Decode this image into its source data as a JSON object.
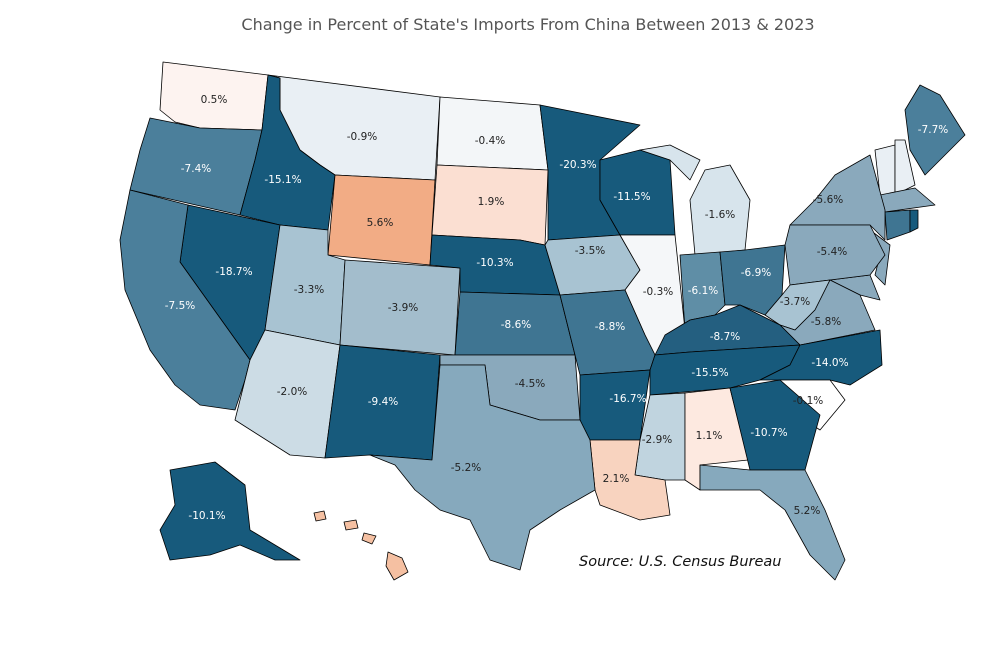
{
  "title": "Change in Percent of State's Imports From China Between 2013 & 2023",
  "source": "Source: U.S. Census Bureau",
  "map": {
    "values": [
      0.5,
      -0.9,
      -0.4,
      -20.3,
      -7.4,
      -15.1,
      5.6,
      1.9,
      -11.5,
      -1.6,
      -5.6,
      -7.7,
      -18.7,
      -7.5,
      -3.3,
      -3.9,
      -10.3,
      -3.5,
      -0.3,
      -6.1,
      -6.9,
      -5.4,
      -3.7,
      -5.8,
      -8.6,
      -8.8,
      -8.7,
      -15.5,
      -14.0,
      -0.1,
      -2.0,
      -9.4,
      -4.5,
      -16.7,
      -2.9,
      1.1,
      -10.7,
      2.1,
      -5.2,
      5.2,
      -10.1
    ],
    "value_labels": [
      "0.5%",
      "-0.9%",
      "-0.4%",
      "-20.3%",
      "-7.4%",
      "-15.1%",
      "5.6%",
      "1.9%",
      "-11.5%",
      "-1.6%",
      "-5.6%",
      "-7.7%",
      "-18.7%",
      "-7.5%",
      "-3.3%",
      "-3.9%",
      "-10.3%",
      "-3.5%",
      "-0.3%",
      "-6.1%",
      "-6.9%",
      "-5.4%",
      "-3.7%",
      "-5.8%",
      "-8.6%",
      "-8.8%",
      "-8.7%",
      "-15.5%",
      "-14.0%",
      "-0.1%",
      "-2.0%",
      "-9.4%",
      "-4.5%",
      "-16.7%",
      "-2.9%",
      "1.1%",
      "-10.7%",
      "2.1%",
      "-5.2%",
      "5.2%",
      "-10.1%"
    ],
    "colors": [
      "#fdf3f0",
      "#e9eff4",
      "#f3f6f8",
      "#175a7c",
      "#4b7f9b",
      "#175a7c",
      "#f2ac85",
      "#fbdfd2",
      "#175a7c",
      "#d7e4ec",
      "#8aa9bc",
      "#4b7f9b",
      "#175a7c",
      "#4b7f9b",
      "#a8c3d2",
      "#a3bdcc",
      "#175a7c",
      "#a8c3d2",
      "#f5f7f9",
      "#5f8ea6",
      "#3f7592",
      "#8aa9bc",
      "#a8c3d2",
      "#8aa9bc",
      "#3f7592",
      "#3f7592",
      "#245f80",
      "#175a7c",
      "#175a7c",
      "#ffffff",
      "#ccdce5",
      "#175a7c",
      "#8aa9bc",
      "#175a7c",
      "#c0d4df",
      "#fde9e0",
      "#175a7c",
      "#f8d3bf",
      "#86a9bd",
      "#86a9bd",
      "#175a7c"
    ]
  }
}
